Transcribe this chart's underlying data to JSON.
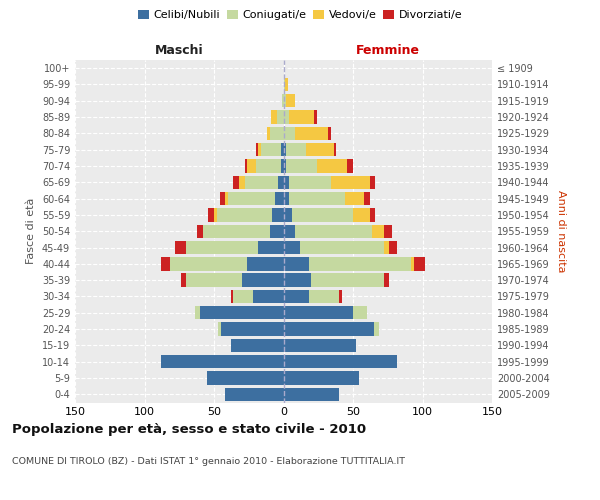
{
  "age_groups": [
    "0-4",
    "5-9",
    "10-14",
    "15-19",
    "20-24",
    "25-29",
    "30-34",
    "35-39",
    "40-44",
    "45-49",
    "50-54",
    "55-59",
    "60-64",
    "65-69",
    "70-74",
    "75-79",
    "80-84",
    "85-89",
    "90-94",
    "95-99",
    "100+"
  ],
  "birth_years": [
    "2005-2009",
    "2000-2004",
    "1995-1999",
    "1990-1994",
    "1985-1989",
    "1980-1984",
    "1975-1979",
    "1970-1974",
    "1965-1969",
    "1960-1964",
    "1955-1959",
    "1950-1954",
    "1945-1949",
    "1940-1944",
    "1935-1939",
    "1930-1934",
    "1925-1929",
    "1920-1924",
    "1915-1919",
    "1910-1914",
    "≤ 1909"
  ],
  "male": {
    "celibi": [
      42,
      55,
      88,
      38,
      45,
      60,
      22,
      30,
      26,
      18,
      10,
      8,
      6,
      4,
      2,
      2,
      0,
      0,
      0,
      0,
      0
    ],
    "coniugati": [
      0,
      0,
      0,
      0,
      2,
      4,
      14,
      40,
      56,
      52,
      48,
      40,
      34,
      24,
      18,
      14,
      10,
      5,
      1,
      0,
      0
    ],
    "vedovi": [
      0,
      0,
      0,
      0,
      0,
      0,
      0,
      0,
      0,
      0,
      0,
      2,
      2,
      4,
      6,
      2,
      2,
      4,
      0,
      0,
      0
    ],
    "divorziati": [
      0,
      0,
      0,
      0,
      0,
      0,
      2,
      4,
      6,
      8,
      4,
      4,
      4,
      4,
      2,
      2,
      0,
      0,
      0,
      0,
      0
    ]
  },
  "female": {
    "nubili": [
      40,
      54,
      82,
      52,
      65,
      50,
      18,
      20,
      18,
      12,
      8,
      6,
      4,
      4,
      2,
      2,
      0,
      0,
      0,
      0,
      0
    ],
    "coniugate": [
      0,
      0,
      0,
      0,
      4,
      10,
      22,
      52,
      74,
      60,
      56,
      44,
      40,
      30,
      22,
      14,
      8,
      4,
      2,
      1,
      0
    ],
    "vedove": [
      0,
      0,
      0,
      0,
      0,
      0,
      0,
      0,
      2,
      4,
      8,
      12,
      14,
      28,
      22,
      20,
      24,
      18,
      6,
      2,
      0
    ],
    "divorziate": [
      0,
      0,
      0,
      0,
      0,
      0,
      2,
      4,
      8,
      6,
      6,
      4,
      4,
      4,
      4,
      2,
      2,
      2,
      0,
      0,
      0
    ]
  },
  "colors": {
    "celibi": "#3d6fa0",
    "coniugati": "#c5d9a0",
    "vedovi": "#f5c842",
    "divorziati": "#cc2222"
  },
  "xlim": 150,
  "title": "Popolazione per età, sesso e stato civile - 2010",
  "subtitle": "COMUNE DI TIROLO (BZ) - Dati ISTAT 1° gennaio 2010 - Elaborazione TUTTITALIA.IT",
  "ylabel_left": "Fasce di età",
  "ylabel_right": "Anni di nascita",
  "xlabel_left": "Maschi",
  "xlabel_right": "Femmine",
  "bg_color": "#ebebeb",
  "grid_color": "#ffffff"
}
